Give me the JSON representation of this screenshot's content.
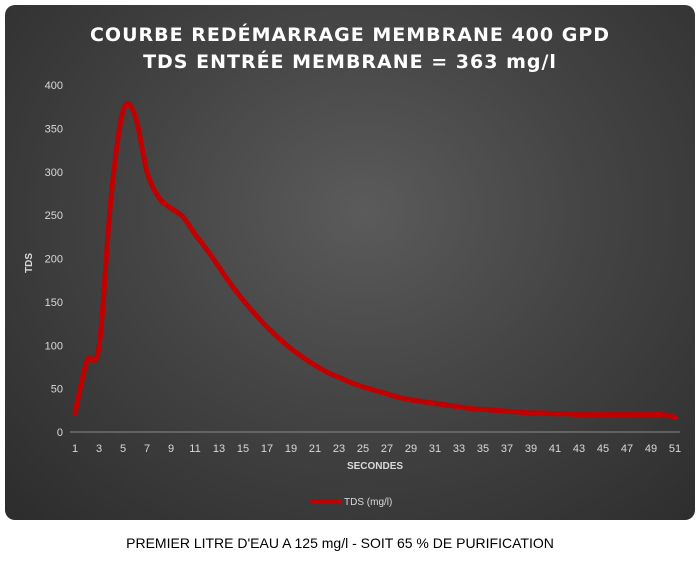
{
  "chart_data": {
    "type": "line",
    "title_lines": [
      "COURBE REDÉMARRAGE MEMBRANE 400 GPD",
      "TDS ENTRÉE MEMBRANE = 363 mg/l"
    ],
    "xlabel": "SECONDES",
    "ylabel": "TDS",
    "ylim": [
      0,
      400
    ],
    "yticks": [
      0,
      50,
      100,
      150,
      200,
      250,
      300,
      350,
      400
    ],
    "xlim": [
      1,
      51
    ],
    "xticks": [
      1,
      3,
      5,
      7,
      9,
      11,
      13,
      15,
      17,
      19,
      21,
      23,
      25,
      27,
      29,
      31,
      33,
      35,
      37,
      39,
      41,
      43,
      45,
      47,
      49,
      51
    ],
    "grid": false,
    "legend_position": "bottom",
    "series": [
      {
        "name": "TDS (mg/l)",
        "color": "#c00000",
        "x": [
          1,
          2,
          3,
          4,
          5,
          6,
          7,
          8,
          9,
          10,
          11,
          12,
          13,
          14,
          15,
          16,
          17,
          18,
          19,
          20,
          21,
          22,
          23,
          24,
          25,
          26,
          27,
          28,
          29,
          30,
          31,
          32,
          33,
          34,
          35,
          36,
          37,
          38,
          39,
          40,
          41,
          42,
          43,
          44,
          45,
          46,
          47,
          48,
          49,
          50,
          51
        ],
        "values": [
          22,
          82,
          98,
          270,
          370,
          365,
          300,
          270,
          258,
          248,
          228,
          210,
          190,
          170,
          152,
          136,
          121,
          108,
          96,
          86,
          77,
          69,
          63,
          57,
          52,
          48,
          44,
          40,
          37,
          35,
          33,
          31,
          29,
          27,
          26,
          25,
          24,
          23,
          22,
          22,
          21,
          21,
          20,
          20,
          20,
          20,
          20,
          20,
          20,
          20,
          17
        ]
      }
    ]
  },
  "caption": "PREMIER LITRE D'EAU A 125 mg/l - SOIT 65 % DE PURIFICATION"
}
